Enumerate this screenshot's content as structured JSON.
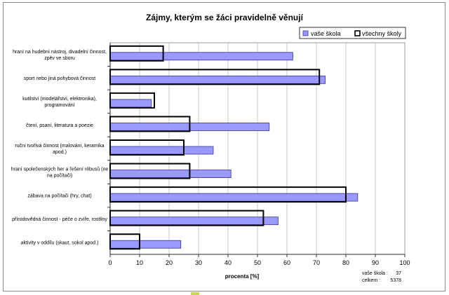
{
  "colors": {
    "school_fill": "#9999ff",
    "school_stroke": "#333399",
    "all_stroke": "#000000",
    "grid": "#bdbdbd"
  },
  "chart_data": {
    "type": "bar",
    "orientation": "horizontal",
    "title": "Zájmy, kterým se žáci pravidelně věnují",
    "xlabel": "procenta [%]",
    "ylabel": "",
    "xlim": [
      0,
      100
    ],
    "xticks": [
      0,
      10,
      20,
      30,
      40,
      50,
      60,
      70,
      80,
      90,
      100
    ],
    "grid": "vertical",
    "legend_position": "top-right",
    "categories": [
      [
        "hraní na hudební nástroj, divadelní činnost,",
        "zpěv ve sboru"
      ],
      [
        "sport nebo jiná pohybová činnost"
      ],
      [
        "kutilství (modelářství, elektronika),",
        "programování"
      ],
      [
        "čtení, psaní, literatura a poezie"
      ],
      [
        "ruční tvořivá činnost (malování, keramika",
        "apod.)"
      ],
      [
        "hraní společenských her a řešení rébusů (ne",
        "na počítači)"
      ],
      [
        "zábava na počítači (hry, chat)"
      ],
      [
        "přírodovědná činnost - péče o zvíře, rostliny"
      ],
      [
        "aktivity v oddílu (skaut, sokol apod.)"
      ]
    ],
    "series": [
      {
        "name": "vaše škola",
        "values": [
          62,
          73,
          14,
          54,
          35,
          41,
          84,
          57,
          24
        ]
      },
      {
        "name": "všechny školy",
        "values": [
          18,
          71,
          15,
          27,
          25,
          27,
          80,
          52,
          10
        ]
      }
    ],
    "notes": [
      {
        "label": "vaše škola :",
        "value": "37"
      },
      {
        "label": "celkem :",
        "value": "5378"
      }
    ]
  }
}
